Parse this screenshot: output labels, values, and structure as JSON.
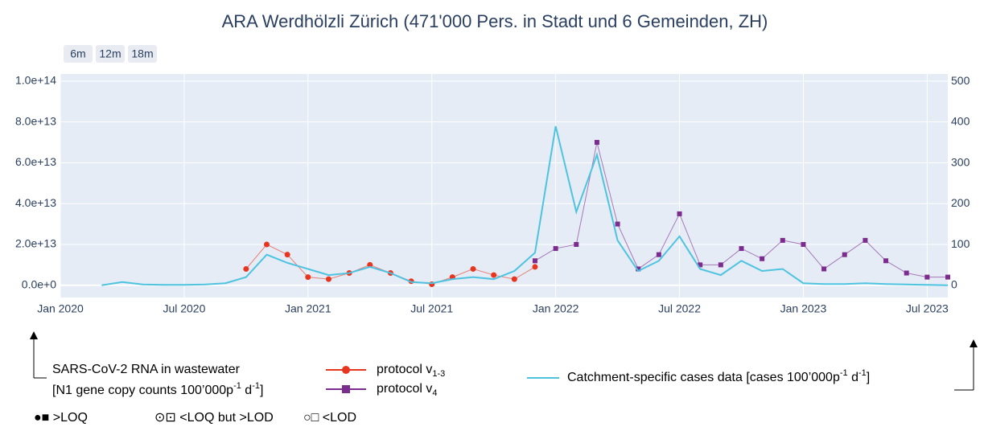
{
  "chart_data": {
    "type": "scatter-line",
    "title": "ARA Werdhölzli Zürich (471'000 Pers. in Stadt und 6 Gemeinden, ZH)",
    "buttons": [
      "6m",
      "12m",
      "18m"
    ],
    "xlim": [
      "2020-01",
      "2023-08"
    ],
    "xticks": [
      {
        "value": "2020-01",
        "label": "Jan 2020"
      },
      {
        "value": "2020-07",
        "label": "Jul 2020"
      },
      {
        "value": "2021-01",
        "label": "Jan 2021"
      },
      {
        "value": "2021-07",
        "label": "Jul 2021"
      },
      {
        "value": "2022-01",
        "label": "Jan 2022"
      },
      {
        "value": "2022-07",
        "label": "Jul 2022"
      },
      {
        "value": "2023-01",
        "label": "Jan 2023"
      },
      {
        "value": "2023-07",
        "label": "Jul 2023"
      }
    ],
    "ylim": [
      -6000000000000.0,
      103500000000000.0
    ],
    "yticks": [
      {
        "value": 0,
        "label": "0.0e+0"
      },
      {
        "value": 20000000000000.0,
        "label": "2.0e+13"
      },
      {
        "value": 40000000000000.0,
        "label": "4.0e+13"
      },
      {
        "value": 60000000000000.0,
        "label": "6.0e+13"
      },
      {
        "value": 80000000000000.0,
        "label": "8.0e+13"
      },
      {
        "value": 100000000000000.0,
        "label": "1.0e+14"
      }
    ],
    "y2lim": [
      -30,
      518
    ],
    "y2ticks": [
      0,
      100,
      200,
      300,
      400,
      500
    ],
    "grid": true,
    "series": [
      {
        "name": "protocol v",
        "name_subscript": "1-3",
        "kind": "scatter",
        "marker": "circle",
        "color": "#e8351f",
        "x": [
          "2020-10",
          "2020-11",
          "2020-12",
          "2021-01",
          "2021-02",
          "2021-03",
          "2021-04",
          "2021-05",
          "2021-06",
          "2021-07",
          "2021-08",
          "2021-09",
          "2021-10",
          "2021-11",
          "2021-12"
        ],
        "values": [
          8000000000000.0,
          20000000000000.0,
          15000000000000.0,
          4000000000000.0,
          3000000000000.0,
          6000000000000.0,
          10000000000000.0,
          6000000000000.0,
          2000000000000.0,
          500000000000.0,
          4000000000000.0,
          8000000000000.0,
          5000000000000.0,
          3000000000000.0,
          9000000000000.0
        ]
      },
      {
        "name": "protocol v",
        "name_subscript": "4",
        "kind": "scatter",
        "marker": "square",
        "color": "#7b2c8e",
        "x": [
          "2021-12",
          "2022-01",
          "2022-02",
          "2022-03",
          "2022-04",
          "2022-05",
          "2022-06",
          "2022-07",
          "2022-08",
          "2022-09",
          "2022-10",
          "2022-11",
          "2022-12",
          "2023-01",
          "2023-02",
          "2023-03",
          "2023-04",
          "2023-05",
          "2023-06",
          "2023-07",
          "2023-08"
        ],
        "values": [
          12000000000000.0,
          18000000000000.0,
          20000000000000.0,
          70000000000000.0,
          30000000000000.0,
          8000000000000.0,
          15000000000000.0,
          35000000000000.0,
          10000000000000.0,
          10000000000000.0,
          18000000000000.0,
          13000000000000.0,
          22000000000000.0,
          20000000000000.0,
          8000000000000.0,
          15000000000000.0,
          22000000000000.0,
          12000000000000.0,
          6000000000000.0,
          4000000000000.0,
          4000000000000.0
        ]
      },
      {
        "name": "Catchment-specific cases data [cases 100’000p",
        "name_sup": "-1",
        "name_mid": " d",
        "name_sup2": "-1",
        "name_end": "]",
        "kind": "line",
        "axis": "y2",
        "color": "#4ec3e0",
        "x": [
          "2020-03",
          "2020-04",
          "2020-05",
          "2020-06",
          "2020-07",
          "2020-08",
          "2020-09",
          "2020-10",
          "2020-11",
          "2020-12",
          "2021-01",
          "2021-02",
          "2021-03",
          "2021-04",
          "2021-05",
          "2021-06",
          "2021-07",
          "2021-08",
          "2021-09",
          "2021-10",
          "2021-11",
          "2021-12",
          "2022-01",
          "2022-02",
          "2022-03",
          "2022-04",
          "2022-05",
          "2022-06",
          "2022-07",
          "2022-08",
          "2022-09",
          "2022-10",
          "2022-11",
          "2022-12",
          "2023-01",
          "2023-02",
          "2023-03",
          "2023-04",
          "2023-05",
          "2023-06",
          "2023-07",
          "2023-08"
        ],
        "values": [
          0,
          8,
          2,
          1,
          1,
          2,
          5,
          20,
          75,
          55,
          40,
          25,
          30,
          45,
          30,
          8,
          5,
          15,
          20,
          15,
          35,
          80,
          390,
          180,
          320,
          110,
          35,
          60,
          120,
          40,
          25,
          60,
          35,
          40,
          5,
          3,
          3,
          5,
          3,
          2,
          1,
          0
        ]
      }
    ],
    "legend_title": "SARS-CoV-2 RNA in wastewater",
    "legend_note": [
      "[N1 gene copy counts 100’000p",
      "-1",
      " d",
      "-1",
      "]"
    ],
    "marker_key": [
      "●■ >LOQ",
      "⊙⊡ <LOQ but >LOD",
      "○□ <LOD"
    ]
  }
}
